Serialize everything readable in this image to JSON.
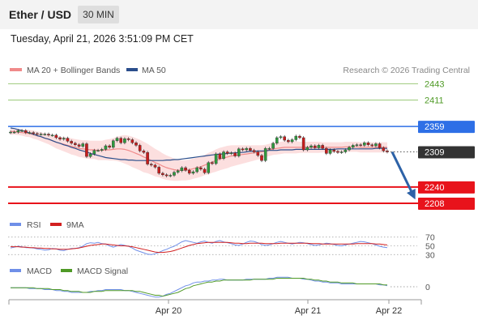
{
  "header": {
    "title": "Ether / USD",
    "timeframe": "30 MIN"
  },
  "timestamp": "Tuesday, April 21, 2026 3:51:09 PM CET",
  "legend": {
    "ma20_label": "MA 20 + Bollinger Bands",
    "ma50_label": "MA 50",
    "research": "Research © 2026 Trading Central"
  },
  "chart_data": [
    {
      "type": "candlestick",
      "levels": [
        {
          "value": 2443,
          "label": "2443",
          "role": "resistance",
          "color": "#9bc97a"
        },
        {
          "value": 2411,
          "label": "2411",
          "role": "resistance",
          "color": "#9bc97a"
        },
        {
          "value": 2359,
          "label": "2359",
          "role": "pivot",
          "color": "#2e6fe6"
        },
        {
          "value": 2309,
          "label": "2309",
          "role": "last-price",
          "color": "#333333"
        },
        {
          "value": 2240,
          "label": "2240",
          "role": "support",
          "color": "#e8131b"
        },
        {
          "value": 2208,
          "label": "2208",
          "role": "support",
          "color": "#e8131b"
        }
      ],
      "close": [
        2348,
        2348,
        2351,
        2351,
        2347,
        2347,
        2345,
        2344,
        2344,
        2344,
        2342,
        2342,
        2337,
        2334,
        2336,
        2330,
        2326,
        2323,
        2320,
        2325,
        2300,
        2305,
        2312,
        2312,
        2314,
        2321,
        2318,
        2331,
        2336,
        2327,
        2335,
        2333,
        2327,
        2322,
        2311,
        2308,
        2285,
        2283,
        2279,
        2267,
        2264,
        2262,
        2263,
        2269,
        2272,
        2278,
        2273,
        2267,
        2270,
        2278,
        2275,
        2268,
        2288,
        2286,
        2305,
        2296,
        2309,
        2306,
        2307,
        2301,
        2315,
        2313,
        2316,
        2312,
        2309,
        2302,
        2292,
        2316,
        2316,
        2326,
        2337,
        2339,
        2332,
        2329,
        2333,
        2340,
        2337,
        2313,
        2318,
        2321,
        2317,
        2322,
        2316,
        2306,
        2313,
        2310,
        2308,
        2309,
        2313,
        2318,
        2322,
        2323,
        2322,
        2327,
        2323,
        2321,
        2325,
        2317,
        2311,
        2309
      ],
      "ma50": [
        2356,
        2355,
        2353,
        2351,
        2349,
        2346,
        2344,
        2341,
        2339,
        2336,
        2334,
        2331,
        2328,
        2326,
        2323,
        2321,
        2318,
        2316,
        2313,
        2311,
        2309,
        2306,
        2304,
        2302,
        2300,
        2298,
        2297,
        2296,
        2295,
        2294,
        2294,
        2293,
        2293,
        2292,
        2292,
        2292,
        2292,
        2292,
        2292,
        2292,
        2292,
        2293,
        2293,
        2294,
        2294,
        2295,
        2296,
        2297,
        2298,
        2299,
        2300,
        2301,
        2302,
        2303,
        2304,
        2305,
        2305,
        2306,
        2307,
        2307,
        2308,
        2308,
        2309,
        2310,
        2310,
        2311,
        2311,
        2311,
        2312,
        2312,
        2312,
        2313,
        2313,
        2313,
        2313,
        2314,
        2314,
        2314,
        2314,
        2314,
        2314,
        2314,
        2314,
        2314,
        2314,
        2314,
        2315,
        2315,
        2315,
        2315,
        2315,
        2315,
        2315,
        2315,
        2315,
        2315,
        2316,
        2316,
        2316,
        2316
      ],
      "ma20": [
        2349,
        2349,
        2348,
        2347,
        2346,
        2345,
        2343,
        2341,
        2339,
        2336,
        2334,
        2331,
        2328,
        2326,
        2324,
        2322,
        2320,
        2318,
        2316,
        2315,
        2314,
        2313,
        2313,
        2312,
        2312,
        2313,
        2313,
        2314,
        2315,
        2315,
        2314,
        2312,
        2309,
        2306,
        2303,
        2299,
        2296,
        2292,
        2288,
        2285,
        2281,
        2278,
        2276,
        2274,
        2273,
        2273,
        2273,
        2274,
        2276,
        2278,
        2280,
        2283,
        2286,
        2289,
        2292,
        2295,
        2297,
        2299,
        2301,
        2302,
        2303,
        2304,
        2305,
        2306,
        2307,
        2308,
        2309,
        2311,
        2313,
        2315,
        2316,
        2317,
        2318,
        2318,
        2318,
        2318,
        2318,
        2318,
        2318,
        2318,
        2318,
        2318,
        2318,
        2318,
        2318,
        2318,
        2318,
        2318,
        2319,
        2319,
        2319,
        2319,
        2318,
        2318,
        2318,
        2318,
        2318,
        2318,
        2318,
        2318
      ],
      "bollinger_halfwidth": [
        6,
        6,
        6,
        6,
        7,
        7,
        8,
        8,
        9,
        9,
        10,
        11,
        12,
        13,
        14,
        15,
        16,
        16,
        17,
        17,
        18,
        18,
        18,
        19,
        19,
        20,
        21,
        22,
        24,
        26,
        28,
        29,
        30,
        30,
        30,
        30,
        29,
        28,
        27,
        26,
        25,
        24,
        23,
        22,
        21,
        20,
        20,
        20,
        20,
        20,
        20,
        20,
        21,
        21,
        22,
        22,
        22,
        22,
        21,
        20,
        19,
        18,
        17,
        16,
        15,
        14,
        13,
        12,
        12,
        12,
        12,
        12,
        12,
        12,
        12,
        12,
        11,
        11,
        11,
        11,
        11,
        11,
        10,
        10,
        10,
        10,
        10,
        10,
        10,
        10,
        10,
        10,
        10,
        10,
        10,
        10,
        10,
        10,
        10,
        10
      ],
      "projection": {
        "from": 2309,
        "to": 2240
      },
      "x_ticks": [
        "Apr 20",
        "Apr 21",
        "Apr 22"
      ],
      "colors": {
        "up": "#2e9a3e",
        "down": "#c71c1c",
        "ma20": "#f08a8a",
        "ma50": "#2a4e8c",
        "band": "#fbd9d9"
      }
    },
    {
      "type": "line",
      "title": "RSI",
      "series": [
        {
          "name": "RSI",
          "color": "#6f8fe8",
          "values": [
            45,
            47,
            49,
            48,
            46,
            46,
            45,
            43,
            42,
            40,
            41,
            44,
            43,
            40,
            39,
            42,
            44,
            44,
            46,
            49,
            55,
            57,
            56,
            58,
            55,
            54,
            50,
            47,
            50,
            53,
            51,
            49,
            45,
            40,
            37,
            34,
            31,
            30,
            32,
            35,
            39,
            42,
            46,
            49,
            54,
            59,
            62,
            60,
            58,
            56,
            59,
            61,
            58,
            56,
            60,
            62,
            59,
            57,
            55,
            52,
            51,
            54,
            58,
            61,
            60,
            57,
            53,
            51,
            52,
            55,
            58,
            60,
            58,
            56,
            54,
            56,
            58,
            57,
            55,
            53,
            51,
            52,
            54,
            56,
            55,
            53,
            51,
            50,
            52,
            54,
            56,
            58,
            60,
            59,
            57,
            55,
            52,
            49,
            47,
            46
          ]
        },
        {
          "name": "9MA",
          "color": "#d22020",
          "values": [
            48,
            48,
            48,
            47,
            47,
            46,
            46,
            45,
            45,
            44,
            44,
            43,
            43,
            42,
            42,
            42,
            43,
            44,
            45,
            47,
            49,
            51,
            52,
            53,
            54,
            54,
            53,
            52,
            51,
            50,
            50,
            49,
            48,
            46,
            44,
            42,
            40,
            38,
            36,
            35,
            35,
            36,
            37,
            39,
            42,
            45,
            48,
            51,
            53,
            55,
            56,
            57,
            58,
            58,
            58,
            58,
            58,
            58,
            57,
            56,
            56,
            55,
            55,
            56,
            56,
            56,
            56,
            55,
            55,
            55,
            55,
            56,
            56,
            56,
            56,
            56,
            56,
            56,
            56,
            55,
            55,
            55,
            54,
            54,
            54,
            54,
            54,
            54,
            54,
            54,
            54,
            55,
            55,
            55,
            55,
            55,
            54,
            54,
            53,
            52
          ]
        }
      ],
      "ylim": [
        25,
        75
      ],
      "levels": [
        70,
        50,
        30
      ]
    },
    {
      "type": "line",
      "title": "MACD",
      "series": [
        {
          "name": "MACD",
          "color": "#6f8fe8",
          "values": [
            -1,
            -1,
            -1,
            -1,
            -1,
            -2,
            -2,
            -2,
            -2,
            -3,
            -3,
            -3,
            -4,
            -4,
            -5,
            -5,
            -6,
            -6,
            -6,
            -6,
            -6,
            -5,
            -5,
            -4,
            -4,
            -3,
            -3,
            -3,
            -3,
            -3,
            -4,
            -4,
            -5,
            -6,
            -7,
            -8,
            -9,
            -10,
            -11,
            -11,
            -10,
            -8,
            -7,
            -5,
            -3,
            -1,
            1,
            2,
            4,
            5,
            5,
            6,
            6,
            7,
            7,
            8,
            8,
            7,
            7,
            7,
            7,
            7,
            8,
            8,
            8,
            8,
            8,
            8,
            9,
            9,
            10,
            10,
            10,
            10,
            9,
            9,
            9,
            8,
            8,
            7,
            6,
            6,
            5,
            5,
            4,
            4,
            4,
            3,
            3,
            3,
            3,
            3,
            3,
            3,
            3,
            3,
            3,
            2,
            2,
            1
          ]
        },
        {
          "name": "MACD Signal",
          "color": "#4f9a26",
          "values": [
            -1,
            -1,
            -1,
            -1,
            -1,
            -1,
            -1,
            -2,
            -2,
            -2,
            -2,
            -3,
            -3,
            -3,
            -4,
            -4,
            -5,
            -5,
            -5,
            -6,
            -6,
            -6,
            -5,
            -5,
            -5,
            -4,
            -4,
            -4,
            -4,
            -4,
            -4,
            -4,
            -4,
            -5,
            -5,
            -6,
            -7,
            -8,
            -9,
            -9,
            -10,
            -9,
            -8,
            -7,
            -6,
            -4,
            -2,
            -1,
            1,
            2,
            3,
            4,
            5,
            5,
            6,
            6,
            7,
            7,
            7,
            7,
            7,
            7,
            7,
            7,
            8,
            8,
            8,
            8,
            8,
            8,
            9,
            9,
            9,
            9,
            9,
            9,
            9,
            9,
            8,
            8,
            7,
            7,
            6,
            6,
            5,
            5,
            5,
            4,
            4,
            4,
            4,
            3,
            3,
            3,
            3,
            3,
            3,
            3,
            2,
            2
          ]
        }
      ],
      "ylim": [
        -12,
        12
      ],
      "zero_label": "0"
    }
  ]
}
